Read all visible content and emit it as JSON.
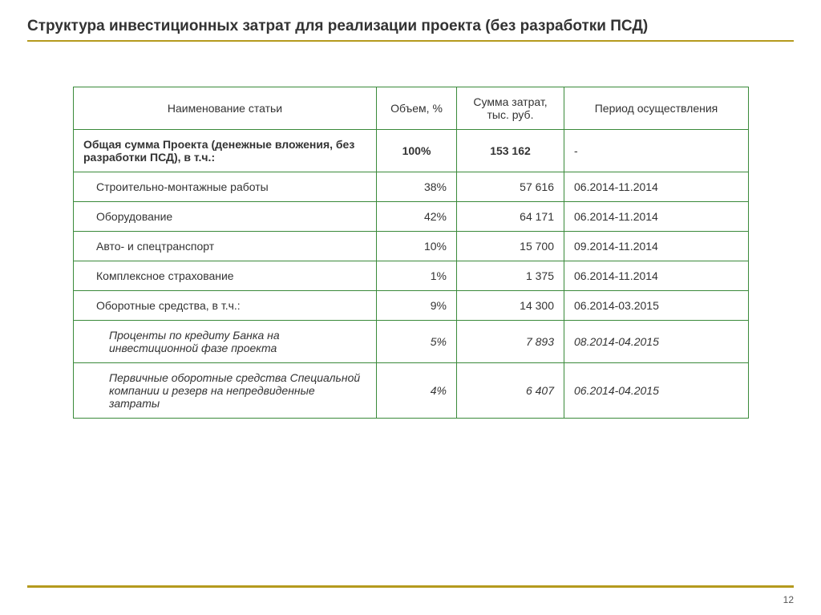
{
  "title": "Структура инвестиционных затрат для реализации проекта (без разработки ПСД)",
  "accent_color": "#b59a1e",
  "table_border_color": "#3a8a3a",
  "page_number": "12",
  "table": {
    "columns": [
      "Наименование статьи",
      "Объем, %",
      "Сумма затрат, тыс. руб.",
      "Период осуществления"
    ],
    "total": {
      "name": "Общая сумма Проекта\n(денежные вложения, без разработки ПСД), в т.ч.:",
      "volume": "100%",
      "sum": "153 162",
      "period": "-"
    },
    "rows": [
      {
        "name": "Строительно-монтажные работы",
        "volume": "38%",
        "sum": "57 616",
        "period": "06.2014-11.2014",
        "indent": 1,
        "italic": false
      },
      {
        "name": "Оборудование",
        "volume": "42%",
        "sum": "64 171",
        "period": "06.2014-11.2014",
        "indent": 1,
        "italic": false
      },
      {
        "name": "Авто- и спецтранспорт",
        "volume": "10%",
        "sum": "15 700",
        "period": "09.2014-11.2014",
        "indent": 1,
        "italic": false
      },
      {
        "name": "Комплексное страхование",
        "volume": "1%",
        "sum": "1 375",
        "period": "06.2014-11.2014",
        "indent": 1,
        "italic": false
      },
      {
        "name": "Оборотные средства, в т.ч.:",
        "volume": "9%",
        "sum": "14 300",
        "period": "06.2014-03.2015",
        "indent": 1,
        "italic": false
      },
      {
        "name": "Проценты по кредиту Банка\nна инвестиционной фазе проекта",
        "volume": "5%",
        "sum": "7 893",
        "period": "08.2014-04.2015",
        "indent": 2,
        "italic": true
      },
      {
        "name": "Первичные оборотные средства Специальной компании и резерв на непредвиденные затраты",
        "volume": "4%",
        "sum": "6 407",
        "period": "06.2014-04.2015",
        "indent": 2,
        "italic": true
      }
    ]
  }
}
